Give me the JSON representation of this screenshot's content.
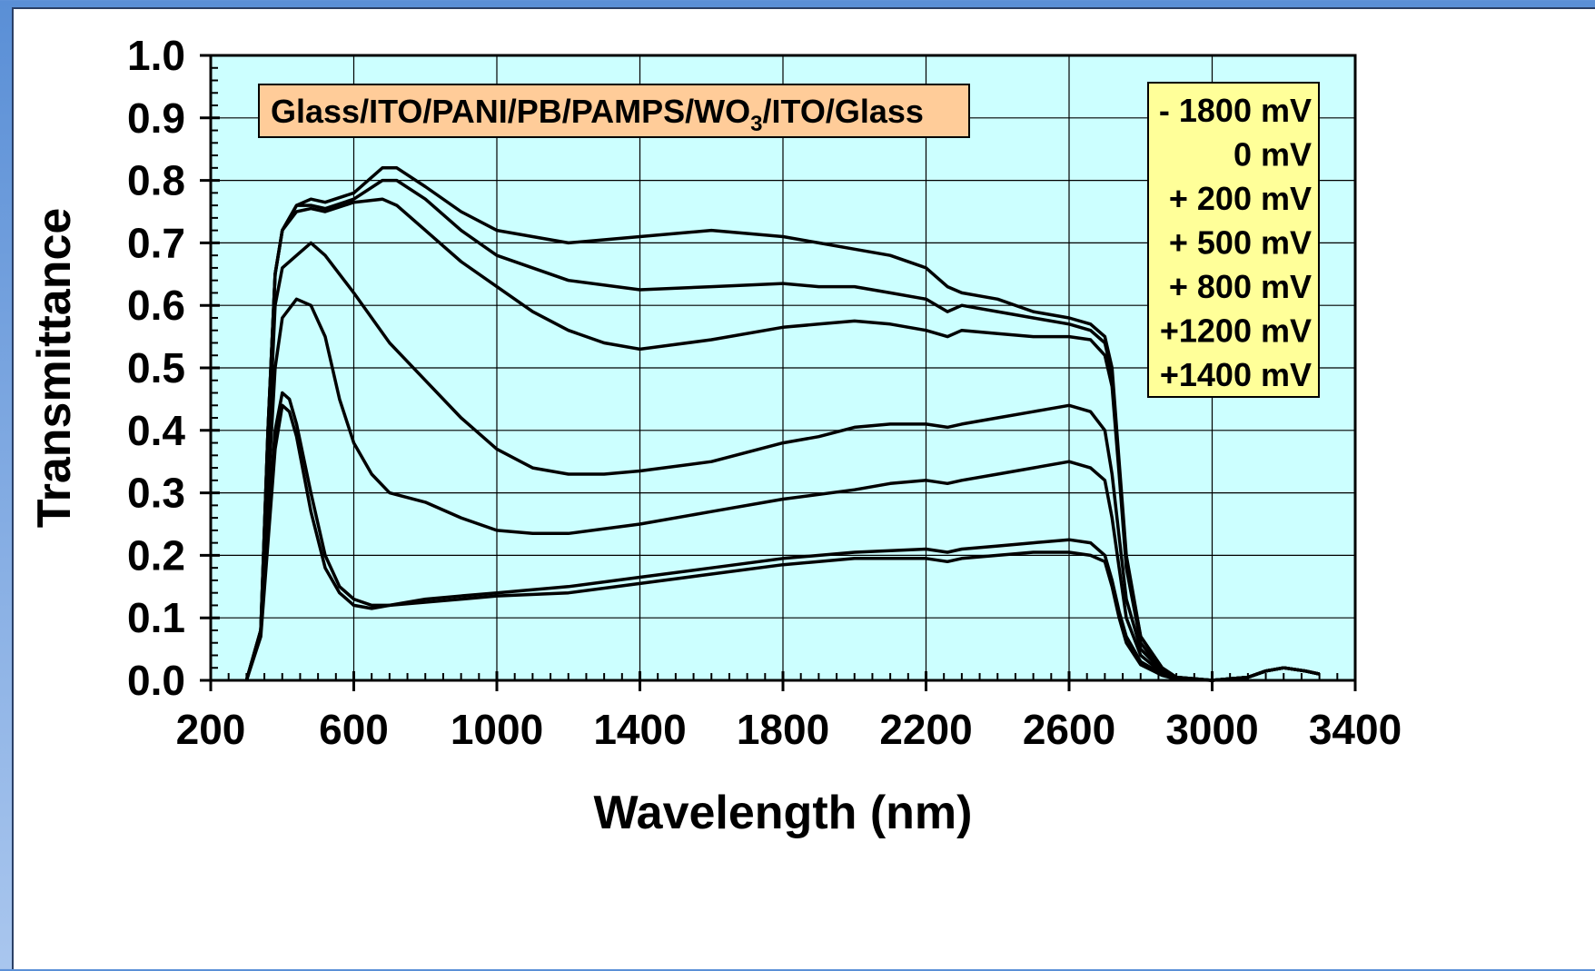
{
  "chart_data": {
    "type": "line",
    "xlabel": "Wavelength (nm)",
    "ylabel": "Transmittance",
    "xlim": [
      200,
      3400
    ],
    "ylim": [
      0,
      1.0
    ],
    "x_ticks": [
      "200",
      "600",
      "1000",
      "1400",
      "1800",
      "2200",
      "2600",
      "3000",
      "3400"
    ],
    "y_ticks": [
      "0.0",
      "0.1",
      "0.2",
      "0.3",
      "0.4",
      "0.5",
      "0.6",
      "0.7",
      "0.8",
      "0.9",
      "1.0"
    ],
    "grid": true,
    "plot_background": "#ccffff",
    "line_color": "#000000",
    "annotation": {
      "text_prefix": "Glass/ITO/PANI/PB/PAMPS/WO",
      "subscript": "3",
      "text_suffix": "/ITO/Glass",
      "background": "#ffcc99"
    },
    "legend": {
      "placement": "top-right",
      "background": "#ffff99",
      "entries": [
        "- 1800 mV",
        "0 mV",
        "+  200 mV",
        "+  500 mV",
        "+  800 mV",
        "+1200 mV",
        "+1400 mV"
      ]
    },
    "series": [
      {
        "x": [
          300,
          340,
          360,
          380,
          400,
          440,
          480,
          520,
          600,
          680,
          720,
          800,
          900,
          1000,
          1200,
          1400,
          1600,
          1800,
          1900,
          2000,
          2100,
          2200,
          2260,
          2300,
          2400,
          2500,
          2600,
          2660,
          2700,
          2720,
          2740,
          2760,
          2800,
          2860,
          2900,
          3000,
          3100,
          3150,
          3200,
          3260,
          3300
        ],
        "y": [
          0.0,
          0.08,
          0.4,
          0.65,
          0.72,
          0.76,
          0.77,
          0.765,
          0.78,
          0.82,
          0.82,
          0.79,
          0.75,
          0.72,
          0.7,
          0.71,
          0.72,
          0.71,
          0.7,
          0.69,
          0.68,
          0.66,
          0.63,
          0.62,
          0.61,
          0.59,
          0.58,
          0.57,
          0.55,
          0.5,
          0.35,
          0.2,
          0.07,
          0.02,
          0.005,
          0.0,
          0.005,
          0.015,
          0.02,
          0.015,
          0.01
        ]
      },
      {
        "x": [
          300,
          340,
          360,
          380,
          400,
          440,
          480,
          520,
          600,
          680,
          720,
          800,
          900,
          1000,
          1200,
          1400,
          1600,
          1800,
          1900,
          2000,
          2100,
          2200,
          2260,
          2300,
          2400,
          2500,
          2600,
          2660,
          2700,
          2720,
          2740,
          2760,
          2800,
          2860,
          2900,
          3000,
          3100,
          3150,
          3200,
          3260,
          3300
        ],
        "y": [
          0.0,
          0.08,
          0.4,
          0.65,
          0.72,
          0.76,
          0.76,
          0.755,
          0.77,
          0.8,
          0.8,
          0.77,
          0.72,
          0.68,
          0.64,
          0.625,
          0.63,
          0.635,
          0.63,
          0.63,
          0.62,
          0.61,
          0.59,
          0.6,
          0.59,
          0.58,
          0.57,
          0.56,
          0.54,
          0.49,
          0.34,
          0.19,
          0.07,
          0.02,
          0.005,
          0.0,
          0.005,
          0.015,
          0.02,
          0.015,
          0.01
        ]
      },
      {
        "x": [
          300,
          340,
          360,
          380,
          400,
          440,
          480,
          520,
          600,
          680,
          720,
          800,
          900,
          1000,
          1100,
          1200,
          1300,
          1400,
          1600,
          1800,
          1900,
          2000,
          2100,
          2200,
          2260,
          2300,
          2400,
          2500,
          2600,
          2660,
          2700,
          2720,
          2740,
          2760,
          2800,
          2860,
          2900,
          3000,
          3100,
          3150,
          3200,
          3260,
          3300
        ],
        "y": [
          0.0,
          0.08,
          0.4,
          0.65,
          0.72,
          0.75,
          0.755,
          0.75,
          0.765,
          0.77,
          0.76,
          0.72,
          0.67,
          0.63,
          0.59,
          0.56,
          0.54,
          0.53,
          0.545,
          0.565,
          0.57,
          0.575,
          0.57,
          0.56,
          0.55,
          0.56,
          0.555,
          0.55,
          0.55,
          0.545,
          0.52,
          0.47,
          0.33,
          0.18,
          0.06,
          0.015,
          0.005,
          0.0,
          0.005,
          0.015,
          0.02,
          0.015,
          0.01
        ]
      },
      {
        "x": [
          300,
          340,
          360,
          380,
          400,
          440,
          480,
          520,
          600,
          700,
          800,
          900,
          1000,
          1100,
          1200,
          1300,
          1400,
          1600,
          1800,
          1900,
          2000,
          2100,
          2200,
          2260,
          2300,
          2400,
          2500,
          2600,
          2660,
          2700,
          2720,
          2740,
          2760,
          2800,
          2860,
          2900,
          3000,
          3100,
          3150,
          3200,
          3260,
          3300
        ],
        "y": [
          0.0,
          0.08,
          0.35,
          0.6,
          0.66,
          0.68,
          0.7,
          0.68,
          0.62,
          0.54,
          0.48,
          0.42,
          0.37,
          0.34,
          0.33,
          0.33,
          0.335,
          0.35,
          0.38,
          0.39,
          0.405,
          0.41,
          0.41,
          0.405,
          0.41,
          0.42,
          0.43,
          0.44,
          0.43,
          0.4,
          0.33,
          0.23,
          0.13,
          0.05,
          0.015,
          0.005,
          0.0,
          0.005,
          0.015,
          0.02,
          0.015,
          0.01
        ]
      },
      {
        "x": [
          300,
          340,
          360,
          380,
          400,
          440,
          480,
          520,
          560,
          600,
          650,
          700,
          800,
          900,
          1000,
          1100,
          1200,
          1400,
          1600,
          1800,
          2000,
          2100,
          2200,
          2260,
          2300,
          2400,
          2500,
          2600,
          2660,
          2700,
          2720,
          2740,
          2760,
          2800,
          2860,
          2900,
          3000,
          3100,
          3150,
          3200,
          3260,
          3300
        ],
        "y": [
          0.0,
          0.08,
          0.3,
          0.5,
          0.58,
          0.61,
          0.6,
          0.55,
          0.45,
          0.38,
          0.33,
          0.3,
          0.285,
          0.26,
          0.24,
          0.235,
          0.235,
          0.25,
          0.27,
          0.29,
          0.305,
          0.315,
          0.32,
          0.315,
          0.32,
          0.33,
          0.34,
          0.35,
          0.34,
          0.32,
          0.26,
          0.18,
          0.1,
          0.04,
          0.012,
          0.004,
          0.0,
          0.005,
          0.015,
          0.02,
          0.015,
          0.01
        ]
      },
      {
        "x": [
          300,
          340,
          360,
          380,
          400,
          420,
          440,
          480,
          520,
          560,
          600,
          650,
          700,
          800,
          900,
          1000,
          1200,
          1400,
          1600,
          1800,
          2000,
          2200,
          2260,
          2300,
          2400,
          2500,
          2600,
          2660,
          2700,
          2720,
          2740,
          2760,
          2800,
          2860,
          2900,
          3000,
          3100,
          3150,
          3200,
          3260,
          3300
        ],
        "y": [
          0.0,
          0.08,
          0.25,
          0.4,
          0.46,
          0.45,
          0.41,
          0.3,
          0.2,
          0.15,
          0.13,
          0.12,
          0.12,
          0.13,
          0.135,
          0.14,
          0.15,
          0.165,
          0.18,
          0.195,
          0.205,
          0.21,
          0.205,
          0.21,
          0.215,
          0.22,
          0.225,
          0.22,
          0.2,
          0.16,
          0.11,
          0.07,
          0.03,
          0.01,
          0.003,
          0.0,
          0.005,
          0.015,
          0.02,
          0.015,
          0.01
        ]
      },
      {
        "x": [
          300,
          340,
          360,
          380,
          400,
          420,
          440,
          480,
          520,
          560,
          600,
          650,
          700,
          800,
          900,
          1000,
          1200,
          1400,
          1600,
          1800,
          2000,
          2200,
          2260,
          2300,
          2400,
          2500,
          2600,
          2660,
          2700,
          2720,
          2740,
          2760,
          2800,
          2860,
          2900,
          3000,
          3100,
          3150,
          3200,
          3260,
          3300
        ],
        "y": [
          0.0,
          0.07,
          0.22,
          0.37,
          0.44,
          0.43,
          0.39,
          0.27,
          0.18,
          0.14,
          0.12,
          0.115,
          0.12,
          0.125,
          0.13,
          0.135,
          0.14,
          0.155,
          0.17,
          0.185,
          0.195,
          0.195,
          0.19,
          0.195,
          0.2,
          0.205,
          0.205,
          0.2,
          0.19,
          0.15,
          0.1,
          0.06,
          0.025,
          0.008,
          0.002,
          0.0,
          0.005,
          0.015,
          0.02,
          0.015,
          0.01
        ]
      }
    ]
  }
}
